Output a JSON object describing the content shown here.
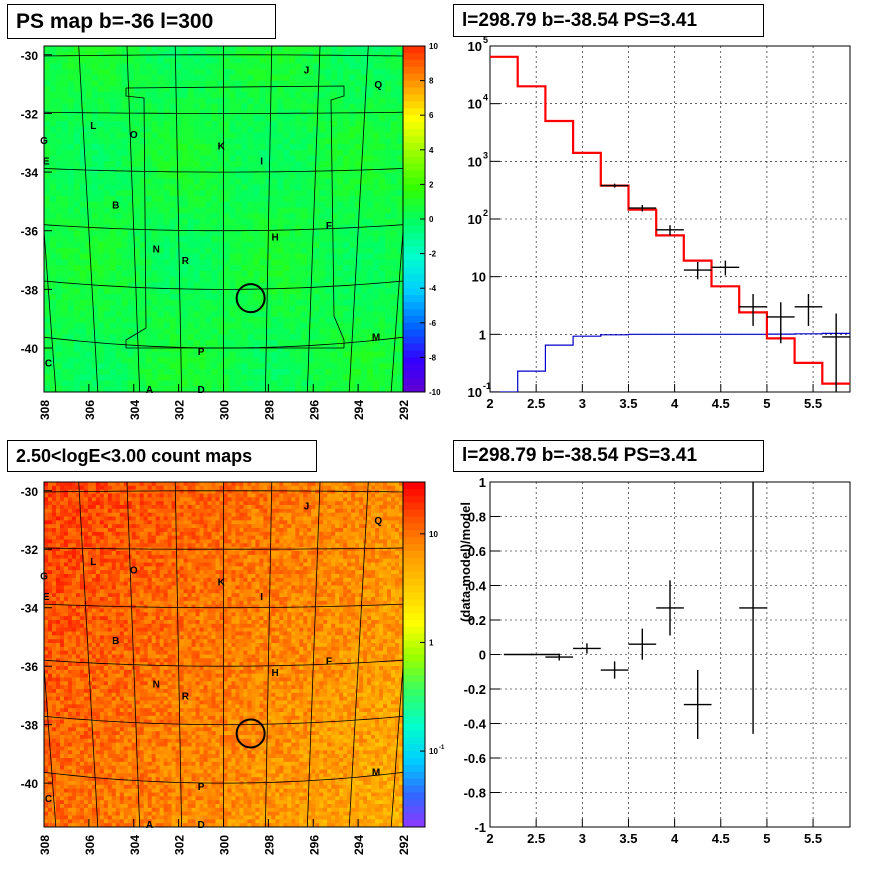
{
  "panels": {
    "map_top_title": "PS map b=-36 l=300",
    "spec_title": "l=298.79 b=-38.54 PS=3.41",
    "map_bottom_title": "2.50<logE<3.00 count maps",
    "ratio_title": "l=298.79 b=-38.54 PS=3.41"
  },
  "colors": {
    "axis": "#000000",
    "model_line": "#ff0000",
    "background_line": "#0000cc",
    "marker": "#000000",
    "grid": "#000000"
  },
  "source_labels": [
    {
      "id": "A",
      "l": 303.3,
      "b": -41.4
    },
    {
      "id": "B",
      "l": 304.8,
      "b": -35.1
    },
    {
      "id": "C",
      "l": 307.8,
      "b": -40.5
    },
    {
      "id": "D",
      "l": 301.0,
      "b": -41.4
    },
    {
      "id": "E",
      "l": 307.9,
      "b": -33.6
    },
    {
      "id": "F",
      "l": 295.3,
      "b": -35.8
    },
    {
      "id": "G",
      "l": 308.0,
      "b": -32.9
    },
    {
      "id": "H",
      "l": 297.7,
      "b": -36.2
    },
    {
      "id": "I",
      "l": 298.3,
      "b": -33.6
    },
    {
      "id": "J",
      "l": 296.3,
      "b": -30.5
    },
    {
      "id": "K",
      "l": 300.1,
      "b": -33.1
    },
    {
      "id": "L",
      "l": 305.8,
      "b": -32.4
    },
    {
      "id": "M",
      "l": 293.2,
      "b": -39.6
    },
    {
      "id": "N",
      "l": 303.0,
      "b": -36.6
    },
    {
      "id": "O",
      "l": 304.0,
      "b": -32.7
    },
    {
      "id": "P",
      "l": 301.0,
      "b": -40.1
    },
    {
      "id": "Q",
      "l": 293.1,
      "b": -31.0
    },
    {
      "id": "R",
      "l": 301.7,
      "b": -37.0
    }
  ],
  "circle_center": {
    "l": 298.79,
    "b": -38.3
  },
  "chart_data": [
    {
      "type": "heatmap",
      "name": "PS map",
      "x_ticks": [
        "308",
        "306",
        "304",
        "302",
        "300",
        "298",
        "296",
        "294",
        "292"
      ],
      "y_ticks": [
        "-30",
        "-32",
        "-34",
        "-36",
        "-38",
        "-40"
      ],
      "xlim": [
        308,
        292
      ],
      "ylim": [
        -41.5,
        -29.7
      ],
      "colorbar_ticks": [
        "10",
        "8",
        "6",
        "4",
        "2",
        "0",
        "-2",
        "-4",
        "-6",
        "-8",
        "-10"
      ],
      "colorbar_range": [
        -10,
        10
      ],
      "colormap": [
        "#6600cc",
        "#3300ff",
        "#0066ff",
        "#00ccff",
        "#00ffcc",
        "#00ff66",
        "#33ff00",
        "#99ff00",
        "#ffff00",
        "#ff9900",
        "#ff3300"
      ],
      "typical_value": 0.6
    },
    {
      "type": "line",
      "name": "spectrum",
      "xlim": [
        2,
        5.9
      ],
      "ylog": true,
      "ylim": [
        0.1,
        100000
      ],
      "x_ticks": [
        "2",
        "2.5",
        "3",
        "3.5",
        "4",
        "4.5",
        "5",
        "5.5"
      ],
      "y_ticks": [
        {
          "v": 0.1,
          "base": "10",
          "exp": "-1"
        },
        {
          "v": 1,
          "base": "1",
          "exp": ""
        },
        {
          "v": 10,
          "base": "10",
          "exp": ""
        },
        {
          "v": 100,
          "base": "10",
          "exp": "2"
        },
        {
          "v": 1000,
          "base": "10",
          "exp": "3"
        },
        {
          "v": 10000,
          "base": "10",
          "exp": "4"
        },
        {
          "v": 100000,
          "base": "10",
          "exp": "5"
        }
      ],
      "model_edges": [
        2.0,
        2.3,
        2.6,
        2.9,
        3.2,
        3.5,
        3.8,
        4.1,
        4.4,
        4.7,
        5.0,
        5.3,
        5.6,
        5.9
      ],
      "model_values": [
        65000,
        20000,
        5000,
        1400,
        380,
        145,
        52,
        19,
        6.8,
        2.4,
        0.85,
        0.32,
        0.14
      ],
      "background_values": [
        0.06,
        0.23,
        0.65,
        0.93,
        0.98,
        1.0,
        1.0,
        1.0,
        1.0,
        1.0,
        1.01,
        1.02,
        1.04
      ],
      "data_points": [
        {
          "x": 3.35,
          "xerr": 0.15,
          "y": 380,
          "ylo": 350,
          "yhi": 410
        },
        {
          "x": 3.65,
          "xerr": 0.15,
          "y": 155,
          "ylo": 135,
          "yhi": 175
        },
        {
          "x": 3.95,
          "xerr": 0.15,
          "y": 65,
          "ylo": 52,
          "yhi": 78
        },
        {
          "x": 4.25,
          "xerr": 0.15,
          "y": 13,
          "ylo": 9,
          "yhi": 18
        },
        {
          "x": 4.55,
          "xerr": 0.15,
          "y": 14.5,
          "ylo": 10.5,
          "yhi": 19
        },
        {
          "x": 4.85,
          "xerr": 0.15,
          "y": 3.0,
          "ylo": 1.4,
          "yhi": 5.0
        },
        {
          "x": 5.15,
          "xerr": 0.15,
          "y": 2.0,
          "ylo": 0.7,
          "yhi": 3.6
        },
        {
          "x": 5.45,
          "xerr": 0.15,
          "y": 3.0,
          "ylo": 1.4,
          "yhi": 5.0
        },
        {
          "x": 5.75,
          "xerr": 0.15,
          "y": 0.9,
          "ylo": 0.1,
          "yhi": 2.3
        }
      ]
    },
    {
      "type": "heatmap",
      "name": "count map",
      "x_ticks": [
        "308",
        "306",
        "304",
        "302",
        "300",
        "298",
        "296",
        "294",
        "292"
      ],
      "y_ticks": [
        "-30",
        "-32",
        "-34",
        "-36",
        "-38",
        "-40"
      ],
      "xlim": [
        308,
        292
      ],
      "ylim": [
        -41.5,
        -29.7
      ],
      "colorbar_log": true,
      "colorbar_range": [
        0.02,
        30
      ],
      "colorbar_ticks": [
        {
          "v": 10,
          "label": "10"
        },
        {
          "v": 1,
          "label": "1"
        },
        {
          "v": 0.1,
          "label": "10",
          "exp": "-1"
        }
      ],
      "colormap": [
        "#9933ff",
        "#3366ff",
        "#00ccff",
        "#00ffcc",
        "#33ff66",
        "#99ff00",
        "#ffff00",
        "#ffcc00",
        "#ff9900",
        "#ff5500",
        "#ff0000"
      ],
      "typical_value": 5
    },
    {
      "type": "scatter",
      "name": "residual",
      "xlim": [
        2,
        5.9
      ],
      "ylim": [
        -1,
        1
      ],
      "ylabel": "(data-model)/model",
      "x_ticks": [
        "2",
        "2.5",
        "3",
        "3.5",
        "4",
        "4.5",
        "5",
        "5.5"
      ],
      "y_ticks": [
        "1",
        "0.8",
        "0.6",
        "0.4",
        "0.2",
        "0",
        "-0.2",
        "-0.4",
        "-0.6",
        "-0.8",
        "-1"
      ],
      "data_points": [
        {
          "x": 2.45,
          "xerr": 0.3,
          "y": 0.0,
          "yerr": 0.005
        },
        {
          "x": 2.75,
          "xerr": 0.15,
          "y": -0.015,
          "yerr": 0.02
        },
        {
          "x": 3.05,
          "xerr": 0.15,
          "y": 0.035,
          "yerr": 0.03
        },
        {
          "x": 3.35,
          "xerr": 0.15,
          "y": -0.09,
          "yerr": 0.05
        },
        {
          "x": 3.65,
          "xerr": 0.15,
          "y": 0.06,
          "yerr": 0.09
        },
        {
          "x": 3.95,
          "xerr": 0.15,
          "y": 0.27,
          "yerr": 0.16
        },
        {
          "x": 4.25,
          "xerr": 0.15,
          "y": -0.29,
          "yerr": 0.2
        },
        {
          "x": 4.85,
          "xerr": 0.15,
          "y": 0.27,
          "yerr": 0.73
        }
      ]
    }
  ]
}
